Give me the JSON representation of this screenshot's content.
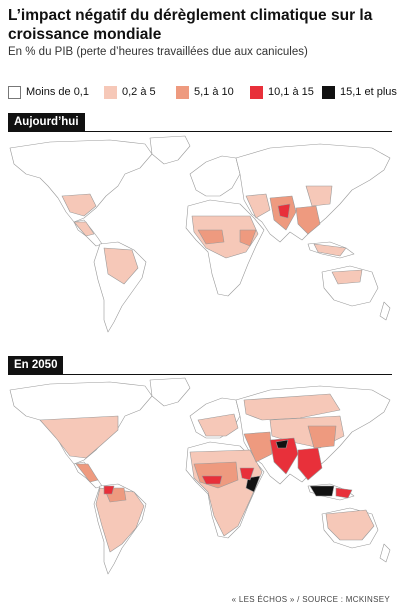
{
  "title": "L’impact négatif du dérèglement climatique sur la croissance mondiale",
  "subtitle": "En % du PIB (perte d’heures travaillées due aux canicules)",
  "legend": [
    {
      "label": "Moins de 0,1",
      "color": "#ffffff"
    },
    {
      "label": "0,2 à 5",
      "color": "#f6c8b8"
    },
    {
      "label": "5,1 à 10",
      "color": "#ee9a7f"
    },
    {
      "label": "10,1 à 15",
      "color": "#e8303a"
    },
    {
      "label": "15,1 et plus",
      "color": "#111111"
    }
  ],
  "maps": [
    {
      "label": "Aujourd’hui"
    },
    {
      "label": "En 2050"
    }
  ],
  "source": "« LES ÉCHOS » / SOURCE : MCKINSEY"
}
